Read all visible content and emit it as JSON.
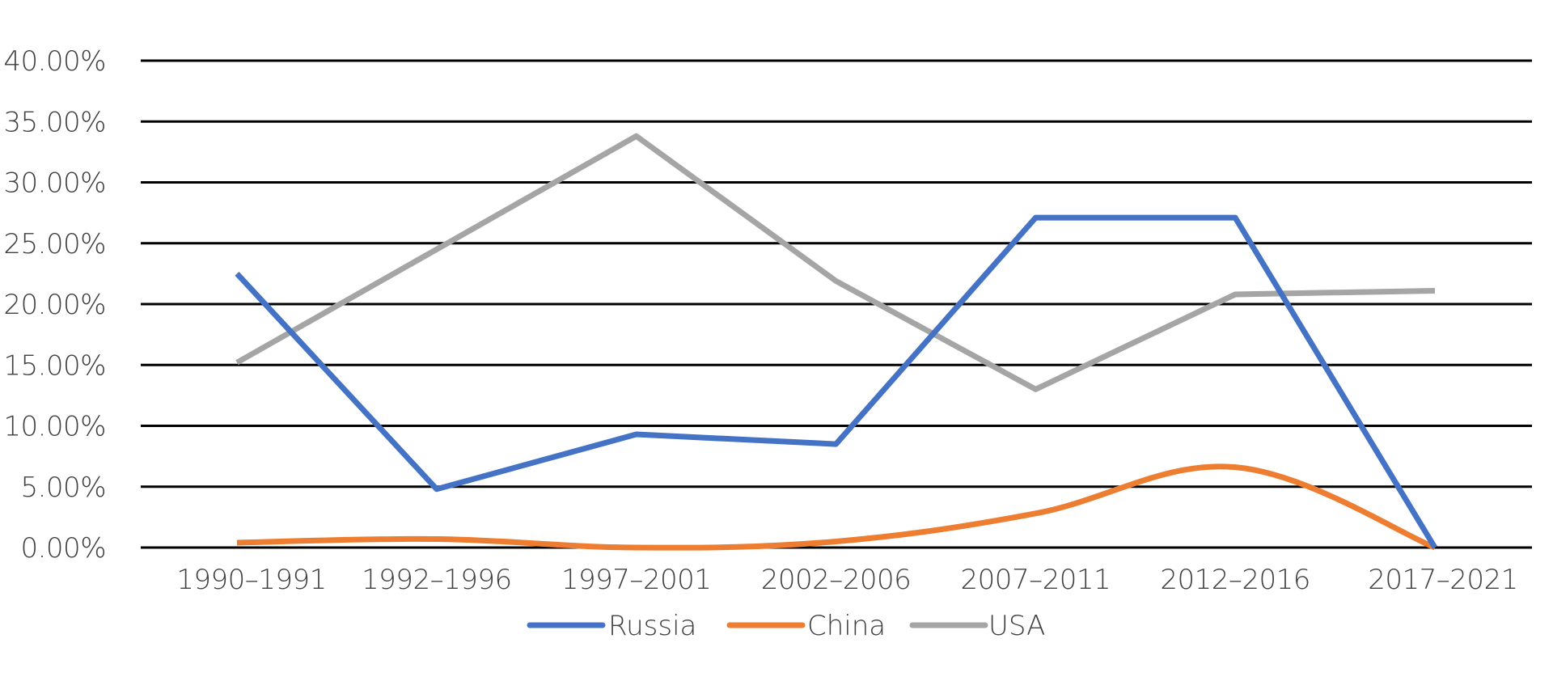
{
  "chart_data": {
    "type": "line",
    "title": "",
    "xlabel": "",
    "ylabel": "",
    "categories": [
      "1990–1991",
      "1992–1996",
      "1997–2001",
      "2002–2006",
      "2007–2011",
      "2012–2016",
      "2017–2021"
    ],
    "ylim": [
      0,
      40
    ],
    "yticks": [
      0,
      5,
      10,
      15,
      20,
      25,
      30,
      35,
      40
    ],
    "ytick_labels": [
      "0.00%",
      "5.00%",
      "10.00%",
      "15.00%",
      "20.00%",
      "25.00%",
      "30.00%",
      "35.00%",
      "40.00%"
    ],
    "grid": true,
    "legend_position": "bottom-center",
    "series": [
      {
        "name": "Russia",
        "color": "#4472C4",
        "values": [
          22.5,
          4.8,
          9.3,
          8.5,
          27.1,
          27.1,
          0.0
        ]
      },
      {
        "name": "China",
        "color": "#ED7D31",
        "values": [
          0.4,
          0.7,
          0.0,
          0.5,
          2.8,
          6.6,
          0.0
        ],
        "smooth": true
      },
      {
        "name": "USA",
        "color": "#A5A5A5",
        "values": [
          15.2,
          24.5,
          33.8,
          21.9,
          13.0,
          20.8,
          21.1
        ]
      }
    ]
  }
}
